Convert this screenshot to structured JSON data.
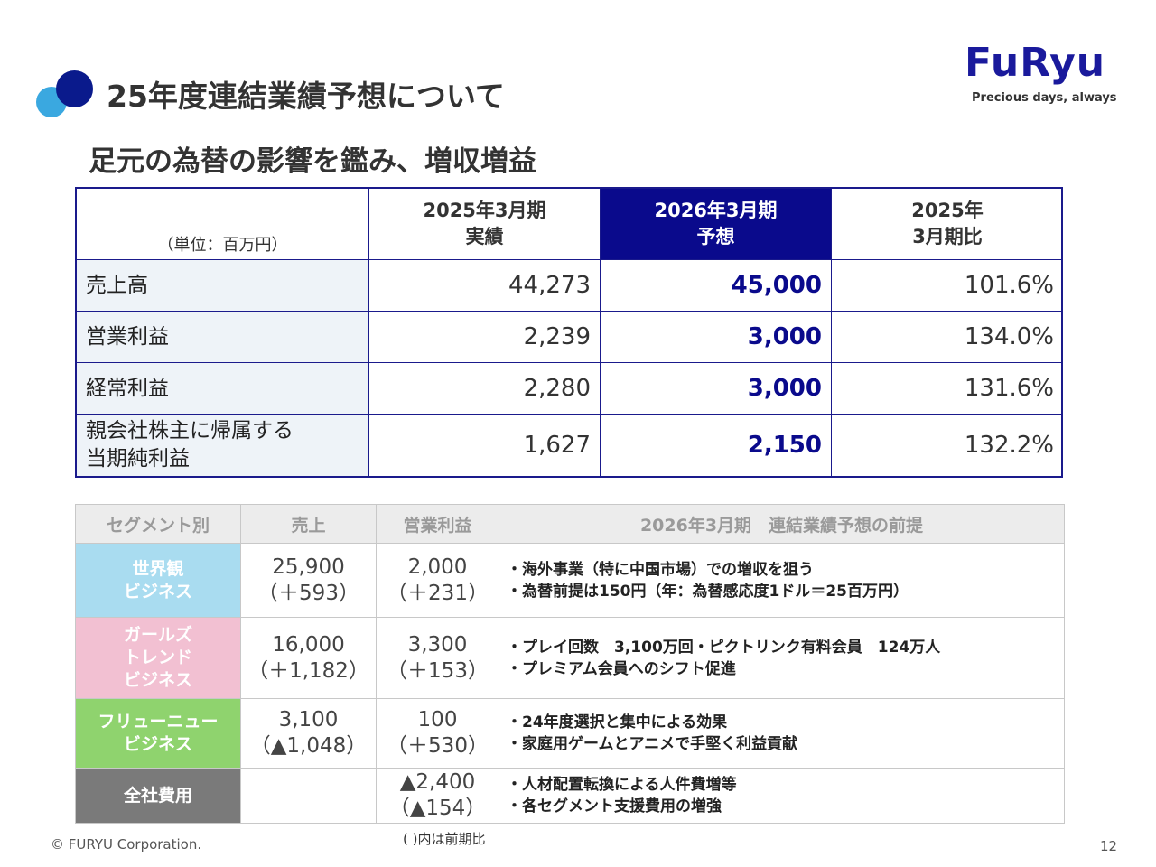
{
  "header": {
    "title": "25年度連結業績予想について",
    "subtitle": "足元の為替の影響を鑑み、増収増益"
  },
  "logo": {
    "wordmark": "FuRyu",
    "tagline": "Precious days, always",
    "color": "#1a1a9c"
  },
  "main_table": {
    "unit": "（単位：百万円）",
    "columns": [
      {
        "line1": "2025年3月期",
        "line2": "実績"
      },
      {
        "line1": "2026年3月期",
        "line2": "予想"
      },
      {
        "line1": "2025年",
        "line2": "3月期比"
      }
    ],
    "rows": [
      {
        "label": "売上高",
        "actual": "44,273",
        "forecast": "45,000",
        "ratio": "101.6%"
      },
      {
        "label": "営業利益",
        "actual": "2,239",
        "forecast": "3,000",
        "ratio": "134.0%"
      },
      {
        "label": "経常利益",
        "actual": "2,280",
        "forecast": "3,000",
        "ratio": "131.6%"
      },
      {
        "label_line1": "親会社株主に帰属する",
        "label_line2": "当期純利益",
        "actual": "1,627",
        "forecast": "2,150",
        "ratio": "132.2%"
      }
    ]
  },
  "segment_table": {
    "headers": [
      "セグメント別",
      "売上",
      "営業利益",
      "2026年3月期　連結業績予想の前提"
    ],
    "rows": [
      {
        "name": [
          "世界観",
          "ビジネス"
        ],
        "color": "#a9dcf0",
        "sales": "25,900",
        "sales_diff": "（＋593）",
        "profit": "2,000",
        "profit_diff": "（＋231）",
        "notes": [
          "・海外事業（特に中国市場）での増収を狙う",
          "・為替前提は150円（年：為替感応度1ドル＝25百万円）"
        ]
      },
      {
        "name": [
          "ガールズ",
          "トレンド",
          "ビジネス"
        ],
        "color": "#f2c0d2",
        "sales": "16,000",
        "sales_diff": "（＋1,182）",
        "profit": "3,300",
        "profit_diff": "（＋153）",
        "notes": [
          "・プレイ回数　3,100万回・ピクトリンク有料会員　124万人",
          "・プレミアム会員へのシフト促進"
        ]
      },
      {
        "name": [
          "フリューニュー",
          "ビジネス"
        ],
        "color": "#8fd36e",
        "sales": "3,100",
        "sales_diff": "（▲1,048）",
        "profit": "100",
        "profit_diff": "（＋530）",
        "notes": [
          "・24年度選択と集中による効果",
          "・家庭用ゲームとアニメで手堅く利益貢献"
        ]
      },
      {
        "name": [
          "全社費用"
        ],
        "color": "#7a7a7a",
        "sales": "",
        "sales_diff": "",
        "profit": "▲2,400",
        "profit_diff": "（▲154）",
        "notes": [
          "・人材配置転換による人件費増等",
          "・各セグメント支援費用の増強"
        ]
      }
    ],
    "footnote": "( )内は前期比"
  },
  "footer": {
    "copyright": "© FURYU Corporation.",
    "page": "12"
  }
}
